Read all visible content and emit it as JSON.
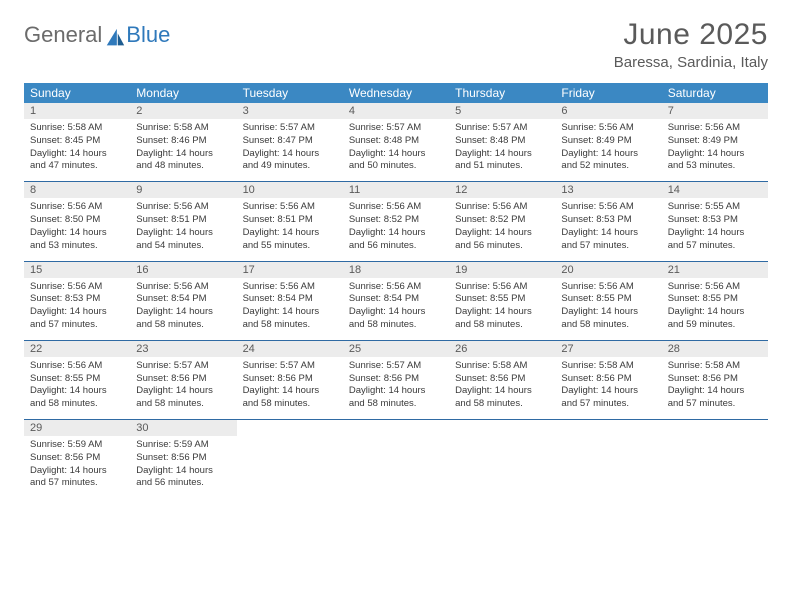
{
  "brand": {
    "part1": "General",
    "part2": "Blue"
  },
  "title": "June 2025",
  "location": "Baressa, Sardinia, Italy",
  "colors": {
    "header_bg": "#3b88c3",
    "header_text": "#ffffff",
    "daynum_bg": "#ececec",
    "divider": "#2f6aa3",
    "body_text": "#3a3a3a",
    "muted_text": "#5a5a5a"
  },
  "dow": [
    "Sunday",
    "Monday",
    "Tuesday",
    "Wednesday",
    "Thursday",
    "Friday",
    "Saturday"
  ],
  "weeks": [
    [
      {
        "n": "1",
        "sr": "5:58 AM",
        "ss": "8:45 PM",
        "dl": "14 hours and 47 minutes."
      },
      {
        "n": "2",
        "sr": "5:58 AM",
        "ss": "8:46 PM",
        "dl": "14 hours and 48 minutes."
      },
      {
        "n": "3",
        "sr": "5:57 AM",
        "ss": "8:47 PM",
        "dl": "14 hours and 49 minutes."
      },
      {
        "n": "4",
        "sr": "5:57 AM",
        "ss": "8:48 PM",
        "dl": "14 hours and 50 minutes."
      },
      {
        "n": "5",
        "sr": "5:57 AM",
        "ss": "8:48 PM",
        "dl": "14 hours and 51 minutes."
      },
      {
        "n": "6",
        "sr": "5:56 AM",
        "ss": "8:49 PM",
        "dl": "14 hours and 52 minutes."
      },
      {
        "n": "7",
        "sr": "5:56 AM",
        "ss": "8:49 PM",
        "dl": "14 hours and 53 minutes."
      }
    ],
    [
      {
        "n": "8",
        "sr": "5:56 AM",
        "ss": "8:50 PM",
        "dl": "14 hours and 53 minutes."
      },
      {
        "n": "9",
        "sr": "5:56 AM",
        "ss": "8:51 PM",
        "dl": "14 hours and 54 minutes."
      },
      {
        "n": "10",
        "sr": "5:56 AM",
        "ss": "8:51 PM",
        "dl": "14 hours and 55 minutes."
      },
      {
        "n": "11",
        "sr": "5:56 AM",
        "ss": "8:52 PM",
        "dl": "14 hours and 56 minutes."
      },
      {
        "n": "12",
        "sr": "5:56 AM",
        "ss": "8:52 PM",
        "dl": "14 hours and 56 minutes."
      },
      {
        "n": "13",
        "sr": "5:56 AM",
        "ss": "8:53 PM",
        "dl": "14 hours and 57 minutes."
      },
      {
        "n": "14",
        "sr": "5:55 AM",
        "ss": "8:53 PM",
        "dl": "14 hours and 57 minutes."
      }
    ],
    [
      {
        "n": "15",
        "sr": "5:56 AM",
        "ss": "8:53 PM",
        "dl": "14 hours and 57 minutes."
      },
      {
        "n": "16",
        "sr": "5:56 AM",
        "ss": "8:54 PM",
        "dl": "14 hours and 58 minutes."
      },
      {
        "n": "17",
        "sr": "5:56 AM",
        "ss": "8:54 PM",
        "dl": "14 hours and 58 minutes."
      },
      {
        "n": "18",
        "sr": "5:56 AM",
        "ss": "8:54 PM",
        "dl": "14 hours and 58 minutes."
      },
      {
        "n": "19",
        "sr": "5:56 AM",
        "ss": "8:55 PM",
        "dl": "14 hours and 58 minutes."
      },
      {
        "n": "20",
        "sr": "5:56 AM",
        "ss": "8:55 PM",
        "dl": "14 hours and 58 minutes."
      },
      {
        "n": "21",
        "sr": "5:56 AM",
        "ss": "8:55 PM",
        "dl": "14 hours and 59 minutes."
      }
    ],
    [
      {
        "n": "22",
        "sr": "5:56 AM",
        "ss": "8:55 PM",
        "dl": "14 hours and 58 minutes."
      },
      {
        "n": "23",
        "sr": "5:57 AM",
        "ss": "8:56 PM",
        "dl": "14 hours and 58 minutes."
      },
      {
        "n": "24",
        "sr": "5:57 AM",
        "ss": "8:56 PM",
        "dl": "14 hours and 58 minutes."
      },
      {
        "n": "25",
        "sr": "5:57 AM",
        "ss": "8:56 PM",
        "dl": "14 hours and 58 minutes."
      },
      {
        "n": "26",
        "sr": "5:58 AM",
        "ss": "8:56 PM",
        "dl": "14 hours and 58 minutes."
      },
      {
        "n": "27",
        "sr": "5:58 AM",
        "ss": "8:56 PM",
        "dl": "14 hours and 57 minutes."
      },
      {
        "n": "28",
        "sr": "5:58 AM",
        "ss": "8:56 PM",
        "dl": "14 hours and 57 minutes."
      }
    ],
    [
      {
        "n": "29",
        "sr": "5:59 AM",
        "ss": "8:56 PM",
        "dl": "14 hours and 57 minutes."
      },
      {
        "n": "30",
        "sr": "5:59 AM",
        "ss": "8:56 PM",
        "dl": "14 hours and 56 minutes."
      },
      null,
      null,
      null,
      null,
      null
    ]
  ],
  "labels": {
    "sunrise": "Sunrise:",
    "sunset": "Sunset:",
    "daylight": "Daylight:"
  }
}
